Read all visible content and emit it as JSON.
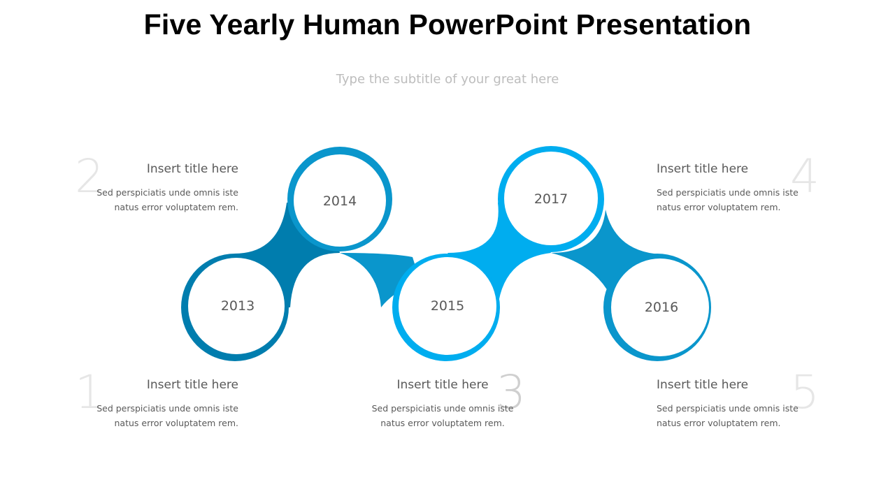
{
  "title": "Five Yearly Human PowerPoint Presentation",
  "subtitle": "Type the subtitle of your great here",
  "colors": {
    "dark_blue": "#007DAE",
    "mid_blue": "#0A96CC",
    "bright_blue": "#00ADEF"
  },
  "years": [
    {
      "label": "2013"
    },
    {
      "label": "2014"
    },
    {
      "label": "2015"
    },
    {
      "label": "2017"
    },
    {
      "label": "2016"
    }
  ],
  "blocks": [
    {
      "number": "1",
      "title": "Insert title here",
      "line1": "Sed perspiciatis unde omnis iste",
      "line2": "natus error voluptatem rem."
    },
    {
      "number": "2",
      "title": "Insert title here",
      "line1": "Sed perspiciatis unde omnis iste",
      "line2": "natus error voluptatem rem."
    },
    {
      "number": "3",
      "title": "Insert title here",
      "line1": "Sed perspiciatis unde omnis iste",
      "line2": "natus error voluptatem rem."
    },
    {
      "number": "4",
      "title": "Insert title here",
      "line1": "Sed perspiciatis unde omnis iste",
      "line2": "natus error voluptatem rem."
    },
    {
      "number": "5",
      "title": "Insert title here",
      "line1": "Sed perspiciatis unde omnis iste",
      "line2": "natus error voluptatem rem."
    }
  ]
}
